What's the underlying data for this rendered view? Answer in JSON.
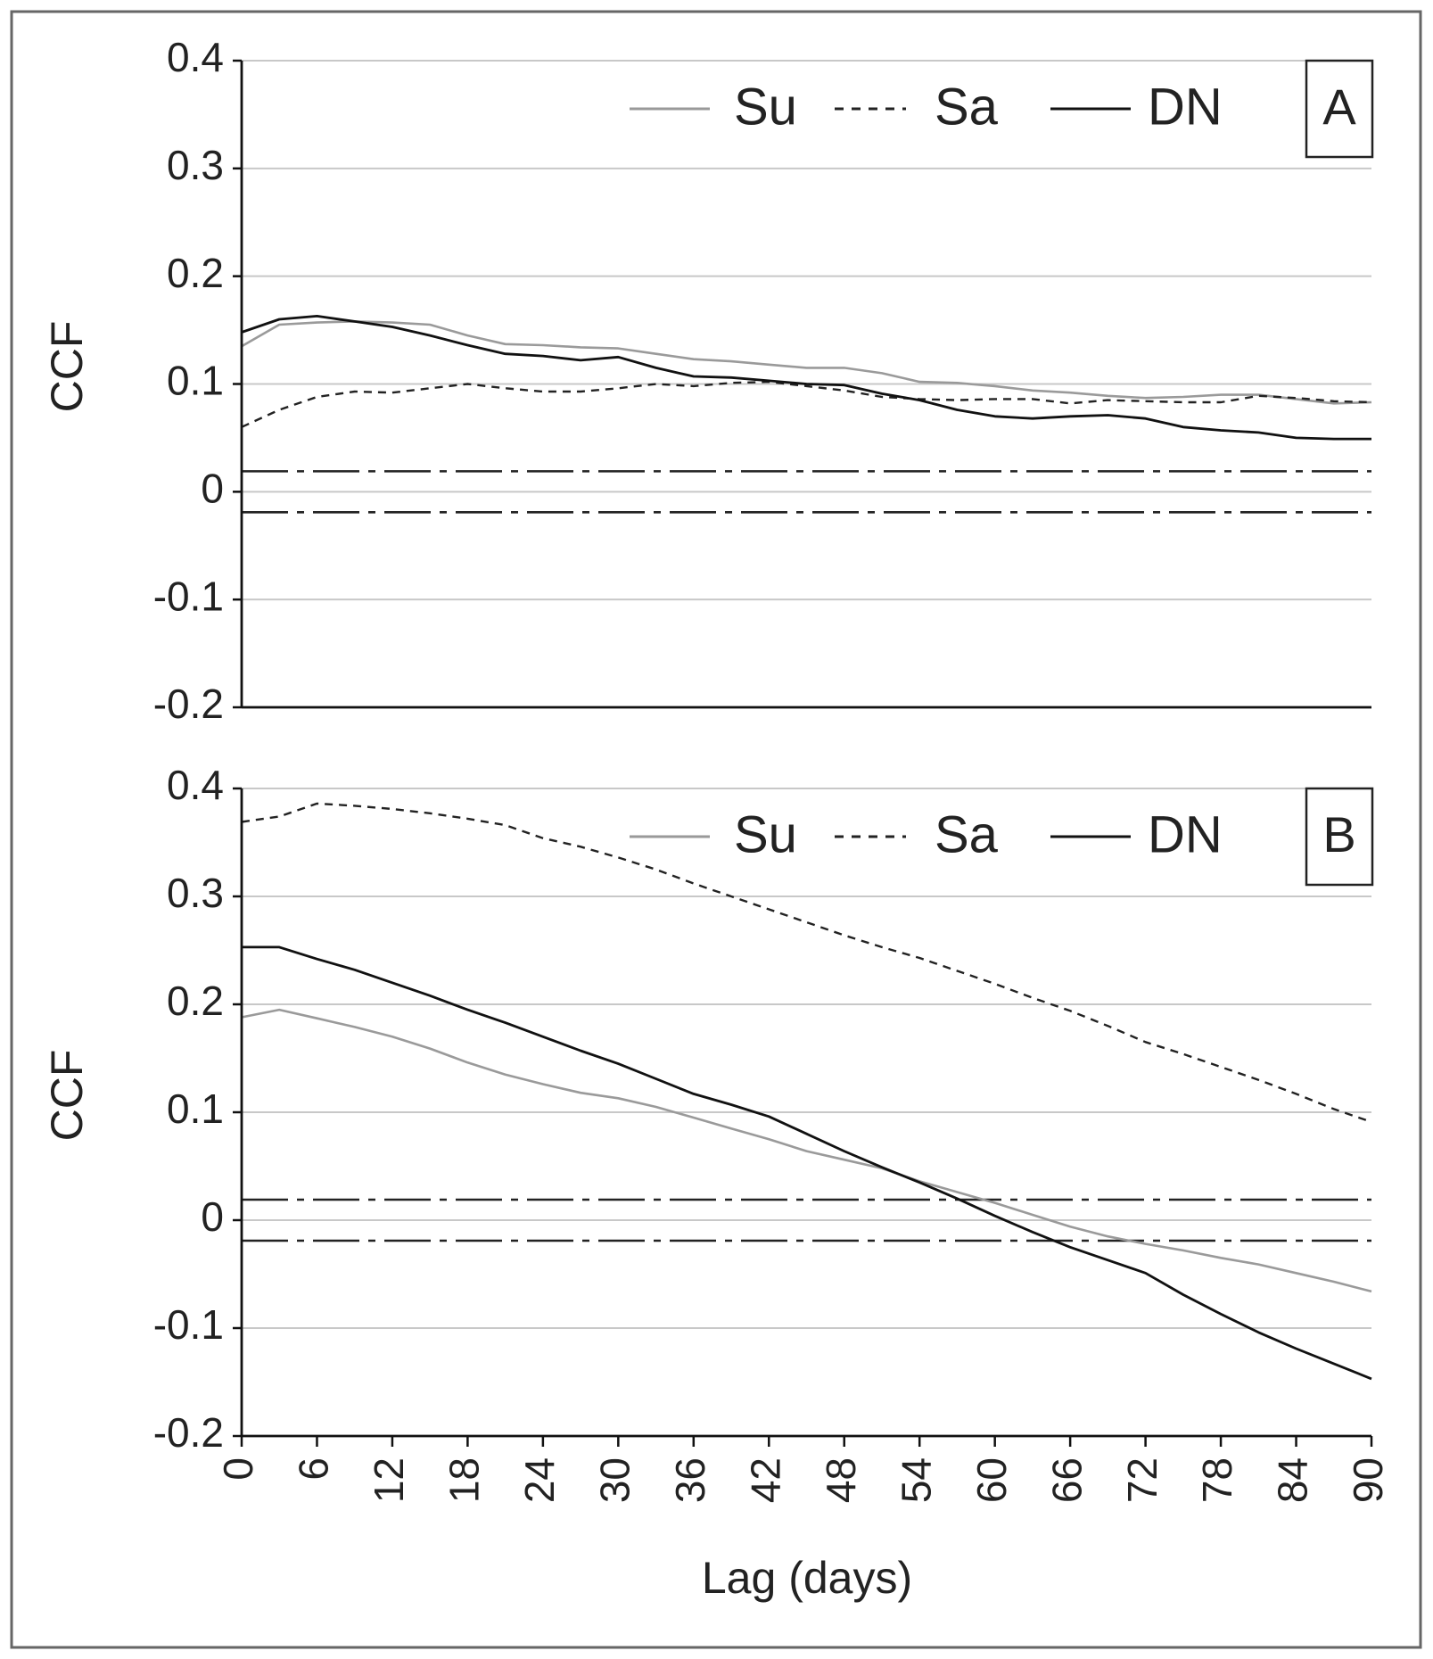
{
  "chart_data": [
    {
      "type": "line",
      "panel_label": "A",
      "ylabel": "CCF",
      "xlabel": "",
      "ylim": [
        -0.2,
        0.4
      ],
      "xlim": [
        0,
        90
      ],
      "yticks": [
        "0.4",
        "0.3",
        "0.2",
        "0.1",
        "0",
        "-0.1",
        "-0.2"
      ],
      "ytick_values": [
        0.4,
        0.3,
        0.2,
        0.1,
        0,
        -0.1,
        -0.2
      ],
      "grid": true,
      "legend_position": "top",
      "confidence_band": [
        0.019,
        -0.019
      ],
      "series": [
        {
          "name": "Su",
          "style": "gray-solid",
          "x": [
            0,
            3,
            6,
            9,
            12,
            15,
            18,
            21,
            24,
            27,
            30,
            33,
            36,
            39,
            42,
            45,
            48,
            51,
            54,
            57,
            60,
            63,
            66,
            69,
            72,
            75,
            78,
            81,
            84,
            87,
            90
          ],
          "values": [
            0.135,
            0.155,
            0.157,
            0.158,
            0.157,
            0.155,
            0.145,
            0.137,
            0.136,
            0.134,
            0.133,
            0.128,
            0.123,
            0.121,
            0.118,
            0.115,
            0.115,
            0.11,
            0.102,
            0.101,
            0.098,
            0.094,
            0.092,
            0.089,
            0.087,
            0.088,
            0.09,
            0.09,
            0.086,
            0.082,
            0.083
          ]
        },
        {
          "name": "Sa",
          "style": "black-dashed",
          "x": [
            0,
            3,
            6,
            9,
            12,
            15,
            18,
            21,
            24,
            27,
            30,
            33,
            36,
            39,
            42,
            45,
            48,
            51,
            54,
            57,
            60,
            63,
            66,
            69,
            72,
            75,
            78,
            81,
            84,
            87,
            90
          ],
          "values": [
            0.06,
            0.076,
            0.088,
            0.093,
            0.092,
            0.096,
            0.1,
            0.096,
            0.093,
            0.093,
            0.096,
            0.1,
            0.098,
            0.101,
            0.102,
            0.098,
            0.094,
            0.088,
            0.086,
            0.085,
            0.086,
            0.086,
            0.082,
            0.085,
            0.084,
            0.083,
            0.083,
            0.089,
            0.087,
            0.084,
            0.083
          ]
        },
        {
          "name": "DN",
          "style": "black-solid",
          "x": [
            0,
            3,
            6,
            9,
            12,
            15,
            18,
            21,
            24,
            27,
            30,
            33,
            36,
            39,
            42,
            45,
            48,
            51,
            54,
            57,
            60,
            63,
            66,
            69,
            72,
            75,
            78,
            81,
            84,
            87,
            90
          ],
          "values": [
            0.148,
            0.16,
            0.163,
            0.158,
            0.153,
            0.145,
            0.136,
            0.128,
            0.126,
            0.122,
            0.125,
            0.115,
            0.107,
            0.106,
            0.103,
            0.1,
            0.099,
            0.091,
            0.085,
            0.076,
            0.07,
            0.068,
            0.07,
            0.071,
            0.068,
            0.06,
            0.057,
            0.055,
            0.05,
            0.049,
            0.049
          ]
        }
      ]
    },
    {
      "type": "line",
      "panel_label": "B",
      "ylabel": "CCF",
      "xlabel": "Lag (days)",
      "ylim": [
        -0.2,
        0.4
      ],
      "xlim": [
        0,
        90
      ],
      "yticks": [
        "0.4",
        "0.3",
        "0.2",
        "0.1",
        "0",
        "-0.1",
        "-0.2"
      ],
      "ytick_values": [
        0.4,
        0.3,
        0.2,
        0.1,
        0,
        -0.1,
        -0.2
      ],
      "xticks": [
        "0",
        "6",
        "12",
        "18",
        "24",
        "30",
        "36",
        "42",
        "48",
        "54",
        "60",
        "66",
        "72",
        "78",
        "84",
        "90"
      ],
      "xtick_values": [
        0,
        6,
        12,
        18,
        24,
        30,
        36,
        42,
        48,
        54,
        60,
        66,
        72,
        78,
        84,
        90
      ],
      "grid": true,
      "legend_position": "top",
      "confidence_band": [
        0.019,
        -0.019
      ],
      "series": [
        {
          "name": "Su",
          "style": "gray-solid",
          "x": [
            0,
            3,
            6,
            9,
            12,
            15,
            18,
            21,
            24,
            27,
            30,
            33,
            36,
            39,
            42,
            45,
            48,
            51,
            54,
            57,
            60,
            63,
            66,
            69,
            72,
            75,
            78,
            81,
            84,
            87,
            90
          ],
          "values": [
            0.188,
            0.195,
            0.187,
            0.179,
            0.17,
            0.159,
            0.146,
            0.135,
            0.126,
            0.118,
            0.113,
            0.105,
            0.095,
            0.085,
            0.075,
            0.064,
            0.056,
            0.048,
            0.036,
            0.026,
            0.016,
            0.005,
            -0.006,
            -0.015,
            -0.022,
            -0.028,
            -0.035,
            -0.041,
            -0.049,
            -0.057,
            -0.066
          ]
        },
        {
          "name": "Sa",
          "style": "black-dashed",
          "x": [
            0,
            3,
            6,
            9,
            12,
            15,
            18,
            21,
            24,
            27,
            30,
            33,
            36,
            39,
            42,
            45,
            48,
            51,
            54,
            57,
            60,
            63,
            66,
            69,
            72,
            75,
            78,
            81,
            84,
            87,
            90
          ],
          "values": [
            0.369,
            0.374,
            0.386,
            0.384,
            0.381,
            0.377,
            0.372,
            0.366,
            0.354,
            0.346,
            0.336,
            0.325,
            0.312,
            0.3,
            0.288,
            0.276,
            0.264,
            0.253,
            0.243,
            0.231,
            0.219,
            0.206,
            0.194,
            0.18,
            0.165,
            0.154,
            0.142,
            0.13,
            0.117,
            0.103,
            0.091
          ]
        },
        {
          "name": "DN",
          "style": "black-solid",
          "x": [
            0,
            3,
            6,
            9,
            12,
            15,
            18,
            21,
            24,
            27,
            30,
            33,
            36,
            39,
            42,
            45,
            48,
            51,
            54,
            57,
            60,
            63,
            66,
            69,
            72,
            75,
            78,
            81,
            84,
            87,
            90
          ],
          "values": [
            0.253,
            0.253,
            0.242,
            0.232,
            0.22,
            0.208,
            0.195,
            0.183,
            0.17,
            0.157,
            0.145,
            0.131,
            0.117,
            0.107,
            0.096,
            0.08,
            0.064,
            0.049,
            0.035,
            0.02,
            0.004,
            -0.011,
            -0.025,
            -0.037,
            -0.049,
            -0.069,
            -0.087,
            -0.104,
            -0.119,
            -0.133,
            -0.147
          ]
        }
      ]
    }
  ]
}
